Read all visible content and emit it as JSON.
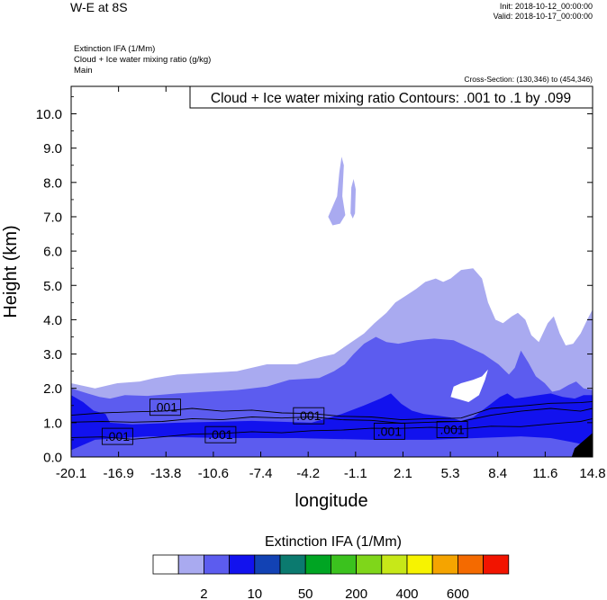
{
  "header": {
    "title": "W-E at 8S",
    "init": "Init: 2018-10-12_00:00:00",
    "valid": "Valid: 2018-10-17_00:00:00",
    "subtitles": [
      "Extinction IFA   (1/Mm)",
      "Cloud + Ice water mixing ratio   (g/kg)",
      "Main"
    ],
    "cross_section": "Cross-Section: (130,346) to (454,346)"
  },
  "contour_label": "Cloud + Ice water mixing ratio Contours: .001 to .1 by .099",
  "colors": {
    "level1": "#a9aaf0",
    "level2": "#5c5cef",
    "level3": "#1212ee",
    "level4": "#000000"
  },
  "chart_data": {
    "type": "heatmap",
    "title": "W-E at 8S",
    "xlabel": "longitude",
    "ylabel": "Height (km)",
    "xlim": [
      -20.1,
      14.8
    ],
    "ylim": [
      0.0,
      10.8
    ],
    "xticks": [
      "-20.1",
      "-16.9",
      "-13.8",
      "-10.6",
      "-7.4",
      "-4.2",
      "-1.1",
      "2.1",
      "5.3",
      "8.4",
      "11.6",
      "14.8"
    ],
    "yticks": [
      "0.0",
      "1.0",
      "2.0",
      "3.0",
      "4.0",
      "5.0",
      "6.0",
      "7.0",
      "8.0",
      "9.0",
      "10.0"
    ],
    "fill_regions": [
      {
        "level": 1,
        "points": [
          [
            -20.1,
            0
          ],
          [
            -20.1,
            2.15
          ],
          [
            -18.5,
            2.0
          ],
          [
            -17.0,
            2.15
          ],
          [
            -15.5,
            2.2
          ],
          [
            -14.5,
            2.3
          ],
          [
            -13.0,
            2.4
          ],
          [
            -11.0,
            2.45
          ],
          [
            -9.0,
            2.5
          ],
          [
            -7.0,
            2.7
          ],
          [
            -5.0,
            2.7
          ],
          [
            -3.5,
            2.9
          ],
          [
            -2.5,
            3.0
          ],
          [
            -1.5,
            3.3
          ],
          [
            -0.5,
            3.6
          ],
          [
            0.2,
            3.9
          ],
          [
            1.0,
            4.2
          ],
          [
            1.6,
            4.5
          ],
          [
            2.3,
            4.7
          ],
          [
            3.0,
            4.9
          ],
          [
            3.6,
            5.1
          ],
          [
            4.3,
            5.2
          ],
          [
            4.8,
            5.1
          ],
          [
            5.3,
            5.2
          ],
          [
            6.0,
            5.45
          ],
          [
            6.8,
            5.5
          ],
          [
            7.4,
            5.2
          ],
          [
            7.8,
            4.5
          ],
          [
            8.3,
            4.0
          ],
          [
            8.8,
            3.9
          ],
          [
            9.4,
            4.1
          ],
          [
            9.8,
            4.2
          ],
          [
            10.3,
            4.0
          ],
          [
            10.7,
            3.55
          ],
          [
            11.2,
            3.35
          ],
          [
            11.8,
            3.9
          ],
          [
            12.2,
            4.1
          ],
          [
            12.6,
            3.6
          ],
          [
            13.0,
            3.25
          ],
          [
            13.5,
            3.3
          ],
          [
            14.0,
            3.6
          ],
          [
            14.5,
            4.05
          ],
          [
            14.8,
            4.3
          ],
          [
            14.8,
            0
          ]
        ]
      },
      {
        "level": 1,
        "points": [
          [
            -2.9,
            7.0
          ],
          [
            -2.3,
            7.6
          ],
          [
            -2.15,
            8.3
          ],
          [
            -2.0,
            8.75
          ],
          [
            -1.85,
            8.5
          ],
          [
            -1.95,
            7.6
          ],
          [
            -1.75,
            7.05
          ],
          [
            -2.1,
            6.8
          ],
          [
            -2.6,
            6.75
          ]
        ]
      },
      {
        "level": 1,
        "points": [
          [
            -1.4,
            7.1
          ],
          [
            -1.35,
            7.85
          ],
          [
            -1.2,
            8.1
          ],
          [
            -1.05,
            7.8
          ],
          [
            -1.1,
            7.1
          ],
          [
            -1.25,
            6.95
          ]
        ]
      },
      {
        "level": 2,
        "points": [
          [
            -20.1,
            0
          ],
          [
            -20.1,
            2.0
          ],
          [
            -19.0,
            1.85
          ],
          [
            -18.2,
            1.75
          ],
          [
            -17.5,
            1.7
          ],
          [
            -16.5,
            1.8
          ],
          [
            -15.0,
            1.78
          ],
          [
            -13.0,
            1.85
          ],
          [
            -11.0,
            1.9
          ],
          [
            -9.0,
            1.95
          ],
          [
            -7.0,
            2.05
          ],
          [
            -5.5,
            2.25
          ],
          [
            -3.5,
            2.3
          ],
          [
            -2.5,
            2.5
          ],
          [
            -1.8,
            2.7
          ],
          [
            -1.2,
            3.0
          ],
          [
            -0.5,
            3.3
          ],
          [
            0.3,
            3.5
          ],
          [
            1.0,
            3.35
          ],
          [
            1.8,
            3.3
          ],
          [
            3.0,
            3.4
          ],
          [
            4.2,
            3.45
          ],
          [
            5.5,
            3.4
          ],
          [
            6.5,
            3.2
          ],
          [
            7.5,
            3.0
          ],
          [
            8.5,
            2.7
          ],
          [
            9.2,
            2.4
          ],
          [
            9.6,
            2.6
          ],
          [
            10.0,
            3.1
          ],
          [
            10.5,
            2.75
          ],
          [
            11.0,
            2.35
          ],
          [
            11.6,
            2.15
          ],
          [
            12.1,
            1.9
          ],
          [
            12.6,
            1.95
          ],
          [
            13.2,
            2.1
          ],
          [
            13.7,
            2.2
          ],
          [
            14.2,
            2.0
          ],
          [
            14.8,
            1.95
          ],
          [
            14.8,
            0
          ]
        ]
      },
      {
        "level": 3,
        "points": [
          [
            -20.1,
            0.2
          ],
          [
            -20.1,
            1.8
          ],
          [
            -19.3,
            1.6
          ],
          [
            -18.6,
            1.35
          ],
          [
            -17.8,
            1.25
          ],
          [
            -17.5,
            1.0
          ],
          [
            -16.0,
            0.95
          ],
          [
            -13.0,
            1.0
          ],
          [
            -8.0,
            1.05
          ],
          [
            -4.0,
            1.0
          ],
          [
            -2.0,
            1.25
          ],
          [
            -0.5,
            1.5
          ],
          [
            0.6,
            1.7
          ],
          [
            1.3,
            1.85
          ],
          [
            2.0,
            1.55
          ],
          [
            2.7,
            1.35
          ],
          [
            3.5,
            1.25
          ],
          [
            4.5,
            1.2
          ],
          [
            5.3,
            1.15
          ],
          [
            6.0,
            1.05
          ],
          [
            6.8,
            1.15
          ],
          [
            7.4,
            1.35
          ],
          [
            8.0,
            1.55
          ],
          [
            8.6,
            1.75
          ],
          [
            9.1,
            1.85
          ],
          [
            9.6,
            1.7
          ],
          [
            10.4,
            1.75
          ],
          [
            11.2,
            1.8
          ],
          [
            12.0,
            1.85
          ],
          [
            12.8,
            1.75
          ],
          [
            13.6,
            1.7
          ],
          [
            14.2,
            1.8
          ],
          [
            14.8,
            1.8
          ],
          [
            14.8,
            0.3
          ],
          [
            13.8,
            0.4
          ],
          [
            12.0,
            0.55
          ],
          [
            10.0,
            0.6
          ],
          [
            7.0,
            0.55
          ],
          [
            4.0,
            0.5
          ],
          [
            0.0,
            0.5
          ],
          [
            -5.0,
            0.55
          ],
          [
            -10.0,
            0.55
          ],
          [
            -15.0,
            0.6
          ],
          [
            -18.5,
            0.5
          ]
        ]
      },
      {
        "level": 4,
        "points": [
          [
            13.4,
            0
          ],
          [
            13.6,
            0.25
          ],
          [
            14.0,
            0.4
          ],
          [
            14.4,
            0.55
          ],
          [
            14.8,
            0.7
          ],
          [
            14.8,
            0
          ]
        ]
      },
      {
        "level": 0,
        "points": [
          [
            5.3,
            1.75
          ],
          [
            6.5,
            1.6
          ],
          [
            7.2,
            1.8
          ],
          [
            7.6,
            2.25
          ],
          [
            7.8,
            2.55
          ],
          [
            7.4,
            2.35
          ],
          [
            6.8,
            2.25
          ],
          [
            6.0,
            2.15
          ],
          [
            5.5,
            2.05
          ]
        ]
      }
    ],
    "contours": [
      {
        "level": 0.001,
        "points": [
          [
            -20.1,
            0.55
          ],
          [
            -18.0,
            0.6
          ],
          [
            -16.0,
            0.5
          ],
          [
            -14.0,
            0.6
          ],
          [
            -12.0,
            0.65
          ],
          [
            -10.0,
            0.7
          ],
          [
            -8.0,
            0.72
          ],
          [
            -6.0,
            0.72
          ],
          [
            -4.0,
            0.75
          ],
          [
            -2.0,
            0.8
          ],
          [
            0.0,
            0.82
          ],
          [
            2.0,
            0.85
          ],
          [
            4.0,
            0.85
          ],
          [
            6.0,
            0.83
          ],
          [
            8.0,
            0.88
          ],
          [
            10.0,
            0.9
          ],
          [
            12.0,
            0.95
          ],
          [
            14.0,
            1.05
          ],
          [
            14.8,
            1.1
          ]
        ]
      },
      {
        "level": 0.001,
        "points": [
          [
            -20.1,
            1.0
          ],
          [
            -18.0,
            1.05
          ],
          [
            -16.0,
            1.0
          ],
          [
            -14.0,
            1.05
          ],
          [
            -12.0,
            1.1
          ],
          [
            -10.0,
            1.1
          ],
          [
            -8.0,
            1.15
          ],
          [
            -6.0,
            1.15
          ],
          [
            -4.0,
            1.15
          ],
          [
            -2.0,
            1.1
          ],
          [
            0.0,
            1.05
          ],
          [
            2.0,
            1.0
          ],
          [
            4.0,
            1.0
          ],
          [
            6.0,
            1.05
          ],
          [
            8.0,
            1.2
          ],
          [
            10.0,
            1.35
          ],
          [
            12.0,
            1.4
          ],
          [
            14.0,
            1.35
          ],
          [
            14.8,
            1.4
          ]
        ]
      },
      {
        "level": 0.001,
        "points": [
          [
            -20.1,
            1.2
          ],
          [
            -18.0,
            1.3
          ],
          [
            -16.0,
            1.3
          ],
          [
            -14.0,
            1.35
          ],
          [
            -12.0,
            1.4
          ],
          [
            -10.0,
            1.35
          ],
          [
            -8.0,
            1.35
          ],
          [
            -6.0,
            1.3
          ],
          [
            -4.0,
            1.25
          ],
          [
            -2.0,
            1.2
          ],
          [
            0.0,
            1.15
          ],
          [
            2.0,
            1.1
          ],
          [
            4.0,
            1.1
          ],
          [
            6.0,
            1.15
          ],
          [
            8.0,
            1.4
          ],
          [
            10.0,
            1.5
          ],
          [
            12.0,
            1.55
          ],
          [
            14.0,
            1.6
          ],
          [
            14.8,
            1.6
          ]
        ]
      }
    ],
    "contour_labels": [
      {
        "text": ".001",
        "x": -13.8,
        "y": 1.45
      },
      {
        "text": ".001",
        "x": -17.0,
        "y": 0.6
      },
      {
        "text": ".001",
        "x": -10.1,
        "y": 0.65
      },
      {
        "text": ".001",
        "x": -4.2,
        "y": 1.2
      },
      {
        "text": ".001",
        "x": 1.2,
        "y": 0.75
      },
      {
        "text": ".001",
        "x": 5.4,
        "y": 0.8
      }
    ],
    "legend": {
      "title": "Extinction IFA  (1/Mm)",
      "colors": [
        "#ffffff",
        "#a9aaf0",
        "#5c5cef",
        "#1212ee",
        "#1242b4",
        "#0b7a6f",
        "#00a523",
        "#3bc21e",
        "#7fd61a",
        "#c7e818",
        "#f7f300",
        "#f5a400",
        "#f46a00",
        "#f21400"
      ],
      "labels": [
        "2",
        "10",
        "50",
        "200",
        "400",
        "600"
      ],
      "label_after_box": [
        1,
        3,
        5,
        7,
        9,
        11
      ]
    }
  }
}
